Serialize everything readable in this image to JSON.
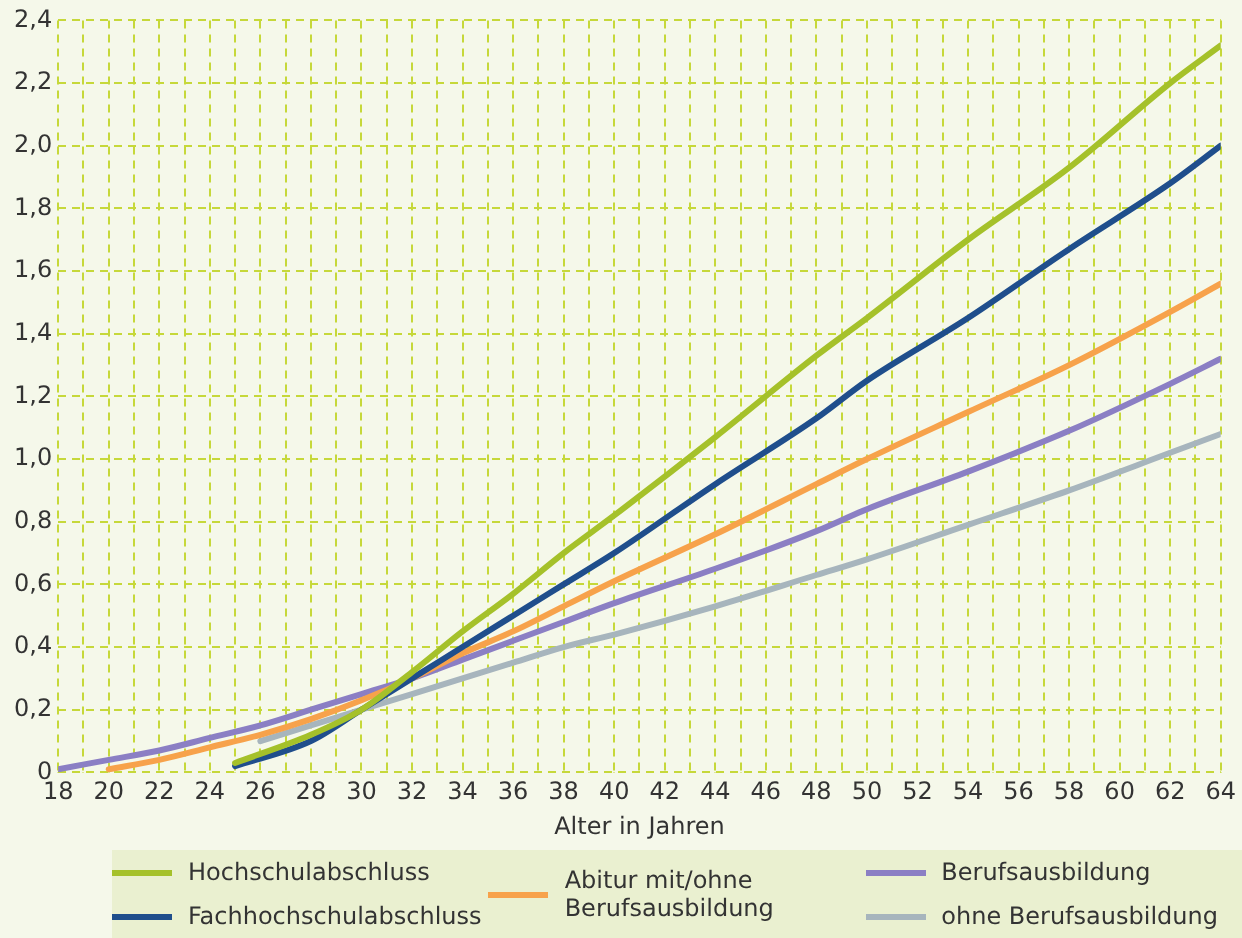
{
  "chart_data": {
    "type": "line",
    "xlabel": "Alter in Jahren",
    "xlim": [
      18,
      64
    ],
    "ylim": [
      0,
      2.4
    ],
    "xticks": [
      18,
      {
        "value": 19,
        "label": null
      },
      20,
      {
        "value": 21,
        "label": null
      },
      22,
      {
        "value": 23,
        "label": null
      },
      24,
      {
        "value": 25,
        "label": null
      },
      26,
      {
        "value": 27,
        "label": null
      },
      28,
      {
        "value": 29,
        "label": null
      },
      30,
      {
        "value": 31,
        "label": null
      },
      32,
      {
        "value": 33,
        "label": null
      },
      34,
      {
        "value": 35,
        "label": null
      },
      36,
      {
        "value": 37,
        "label": null
      },
      38,
      {
        "value": 39,
        "label": null
      },
      40,
      {
        "value": 41,
        "label": null
      },
      42,
      {
        "value": 43,
        "label": null
      },
      44,
      {
        "value": 45,
        "label": null
      },
      46,
      {
        "value": 47,
        "label": null
      },
      48,
      {
        "value": 49,
        "label": null
      },
      50,
      {
        "value": 51,
        "label": null
      },
      52,
      {
        "value": 53,
        "label": null
      },
      54,
      {
        "value": 55,
        "label": null
      },
      56,
      {
        "value": 57,
        "label": null
      },
      58,
      {
        "value": 59,
        "label": null
      },
      60,
      {
        "value": 61,
        "label": null
      },
      62,
      {
        "value": 63,
        "label": null
      },
      64
    ],
    "yticks": [
      0,
      {
        "value": 0.2,
        "label": "0,2"
      },
      {
        "value": 0.4,
        "label": "0,4"
      },
      {
        "value": 0.6,
        "label": "0,6"
      },
      {
        "value": 0.8,
        "label": "0,8"
      },
      {
        "value": 1.0,
        "label": "1,0"
      },
      {
        "value": 1.2,
        "label": "1,2"
      },
      {
        "value": 1.4,
        "label": "1,4"
      },
      {
        "value": 1.6,
        "label": "1,6"
      },
      {
        "value": 1.8,
        "label": "1,8"
      },
      {
        "value": 2.0,
        "label": "2,0"
      },
      {
        "value": 2.2,
        "label": "2,2"
      },
      {
        "value": 2.4,
        "label": "2,4"
      }
    ],
    "grid": true,
    "legend": "bottom",
    "marker": "none",
    "line_style": "solid",
    "series": [
      {
        "name": "Hochschulabschluss",
        "color": "#a5c12a",
        "x": [
          25,
          28,
          30,
          32,
          34,
          36,
          38,
          40,
          44,
          48,
          50,
          54,
          58,
          62,
          64
        ],
        "values": [
          0.03,
          0.12,
          0.2,
          0.32,
          0.45,
          0.57,
          0.7,
          0.82,
          1.07,
          1.33,
          1.45,
          1.7,
          1.93,
          2.2,
          2.32
        ]
      },
      {
        "name": "Fachhochschulabschluss",
        "color": "#1f4e8c",
        "x": [
          25,
          28,
          30,
          32,
          34,
          36,
          38,
          40,
          44,
          48,
          50,
          54,
          58,
          62,
          64
        ],
        "values": [
          0.02,
          0.1,
          0.2,
          0.3,
          0.4,
          0.5,
          0.6,
          0.7,
          0.92,
          1.13,
          1.25,
          1.45,
          1.67,
          1.88,
          2.0
        ]
      },
      {
        "name": "Abitur mit/ohne Berufsausbildung",
        "color": "#f7a24b",
        "x": [
          20,
          22,
          24,
          26,
          28,
          30,
          32,
          34,
          36,
          38,
          40,
          44,
          48,
          50,
          54,
          58,
          62,
          64
        ],
        "values": [
          0.01,
          0.04,
          0.08,
          0.12,
          0.17,
          0.23,
          0.3,
          0.38,
          0.45,
          0.53,
          0.61,
          0.76,
          0.92,
          1.0,
          1.15,
          1.3,
          1.47,
          1.56
        ]
      },
      {
        "name": "Berufsausbildung",
        "color": "#8b7fc4",
        "x": [
          18,
          20,
          22,
          24,
          26,
          28,
          30,
          32,
          34,
          36,
          38,
          40,
          44,
          48,
          50,
          54,
          58,
          62,
          64
        ],
        "values": [
          0.01,
          0.04,
          0.07,
          0.11,
          0.15,
          0.2,
          0.25,
          0.3,
          0.36,
          0.42,
          0.48,
          0.54,
          0.65,
          0.77,
          0.84,
          0.96,
          1.09,
          1.24,
          1.32
        ]
      },
      {
        "name": "ohne Berufsausbildung",
        "color": "#a7b5bd",
        "x": [
          26,
          28,
          30,
          32,
          34,
          36,
          38,
          40,
          44,
          48,
          50,
          54,
          58,
          62,
          64
        ],
        "values": [
          0.1,
          0.15,
          0.2,
          0.25,
          0.3,
          0.35,
          0.4,
          0.44,
          0.53,
          0.63,
          0.68,
          0.79,
          0.9,
          1.02,
          1.08
        ]
      }
    ]
  }
}
